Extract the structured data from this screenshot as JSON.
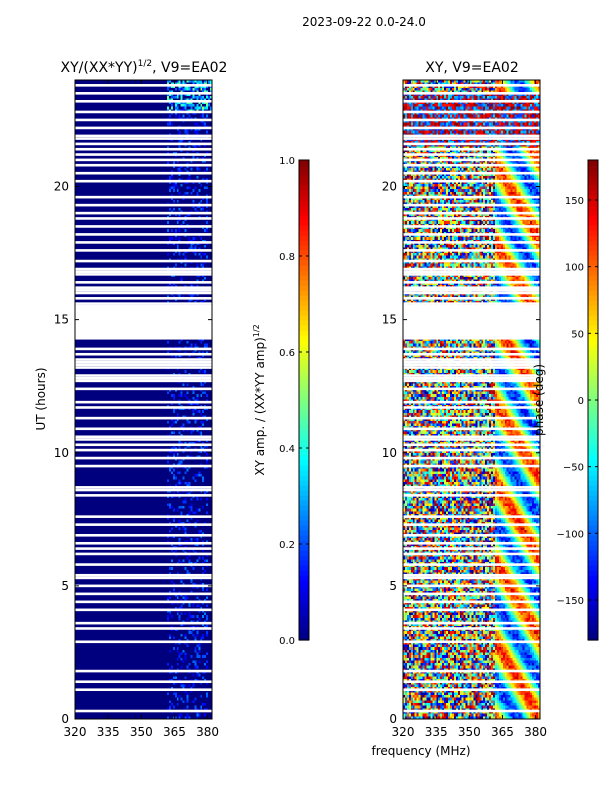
{
  "figure": {
    "suptitle": "2023-09-22 0.0-24.0",
    "xlabel": "frequency (MHz)"
  },
  "colormaps": {
    "jet": [
      "#00007f",
      "#0000ff",
      "#007fff",
      "#00ffff",
      "#7fff7f",
      "#ffff00",
      "#ff7f00",
      "#ff0000",
      "#7f0000"
    ]
  },
  "chart_data": [
    {
      "type": "heatmap",
      "name": "amplitude",
      "title_main": "XY/(XX*YY)",
      "title_sup": "1/2",
      "title_tail": ", V9=EA02",
      "xlabel": "",
      "ylabel": "UT (hours)",
      "xlim": [
        320,
        382
      ],
      "ylim": [
        0,
        24
      ],
      "xticks": [
        320,
        335,
        350,
        365,
        380
      ],
      "yticks": [
        0,
        5,
        10,
        15,
        20
      ],
      "background_value": 0.0,
      "rfi_band_mhz": [
        362,
        380
      ],
      "rfi_band_value": 0.25,
      "top_band_hours": [
        22.8,
        24
      ],
      "top_band_value": 0.35,
      "flagged_hours": [
        0.3,
        1.1,
        1.4,
        1.8,
        2.9,
        3.4,
        3.6,
        4.1,
        4.4,
        4.7,
        5.0,
        5.3,
        5.4,
        5.8,
        6.2,
        6.4,
        6.6,
        6.9,
        7.3,
        7.6,
        8.4,
        8.6,
        8.7,
        9.5,
        9.8,
        10.1,
        10.3,
        10.5,
        10.6,
        10.9,
        11.3,
        11.7,
        11.9,
        12.4,
        12.7,
        12.8,
        12.9,
        13.2,
        13.3,
        13.4,
        13.5,
        13.7,
        13.9,
        14.3,
        14.4,
        14.5,
        14.6,
        14.7,
        14.8,
        14.9,
        15.0,
        15.1,
        15.2,
        15.3,
        15.4,
        15.5,
        15.6,
        15.8,
        16.0,
        16.1,
        16.2,
        16.4,
        16.7,
        16.8,
        16.9,
        17.2,
        17.6,
        17.9,
        18.2,
        18.5,
        18.8,
        19.0,
        19.3,
        19.6,
        20.2,
        20.5,
        20.8,
        21.0,
        21.2,
        21.4,
        21.6,
        21.8,
        21.9,
        22.2,
        22.5,
        22.8,
        23.2,
        23.5,
        23.8
      ],
      "colorbar": {
        "label_main": "XY amp. / (XX*YY amp)",
        "label_sup": "1/2",
        "vmin": 0,
        "vmax": 1,
        "ticks": [
          "0.0",
          "0.2",
          "0.4",
          "0.6",
          "0.8",
          "1.0"
        ],
        "tick_values": [
          0,
          0.2,
          0.4,
          0.6,
          0.8,
          1.0
        ]
      }
    },
    {
      "type": "heatmap",
      "name": "phase",
      "title_main": "XY, V9=EA02",
      "title_sup": "",
      "title_tail": "",
      "xlabel": "frequency (MHz)",
      "ylabel": "",
      "xlim": [
        320,
        382
      ],
      "ylim": [
        0,
        24
      ],
      "xticks": [
        320,
        335,
        350,
        365,
        380
      ],
      "yticks": [
        0,
        5,
        10,
        15,
        20
      ],
      "values": "random phase noise in degrees, structured near 362-380 MHz",
      "flagged_hours": [
        0.3,
        1.1,
        1.4,
        1.8,
        2.9,
        3.4,
        3.6,
        4.1,
        4.4,
        4.7,
        5.0,
        5.3,
        5.4,
        5.8,
        6.2,
        6.4,
        6.6,
        6.9,
        7.3,
        7.6,
        8.4,
        8.6,
        8.7,
        9.5,
        9.8,
        10.1,
        10.3,
        10.5,
        10.6,
        10.9,
        11.3,
        11.7,
        11.9,
        12.4,
        12.7,
        12.8,
        12.9,
        13.2,
        13.3,
        13.4,
        13.5,
        13.7,
        13.9,
        14.3,
        14.4,
        14.5,
        14.6,
        14.7,
        14.8,
        14.9,
        15.0,
        15.1,
        15.2,
        15.3,
        15.4,
        15.5,
        15.6,
        15.8,
        16.0,
        16.1,
        16.2,
        16.4,
        16.7,
        16.8,
        16.9,
        17.2,
        17.6,
        17.9,
        18.2,
        18.5,
        18.8,
        19.0,
        19.3,
        19.6,
        20.2,
        20.5,
        20.8,
        21.0,
        21.2,
        21.4,
        21.6,
        21.8,
        21.9,
        22.2,
        22.5,
        22.8,
        23.2,
        23.5,
        23.8
      ],
      "colorbar": {
        "label_main": "phase (deg)",
        "label_sup": "",
        "vmin": -180,
        "vmax": 180,
        "ticks": [
          "−150",
          "−100",
          "−50",
          "0",
          "50",
          "100",
          "150"
        ],
        "tick_values": [
          -150,
          -100,
          -50,
          0,
          50,
          100,
          150
        ]
      }
    }
  ]
}
